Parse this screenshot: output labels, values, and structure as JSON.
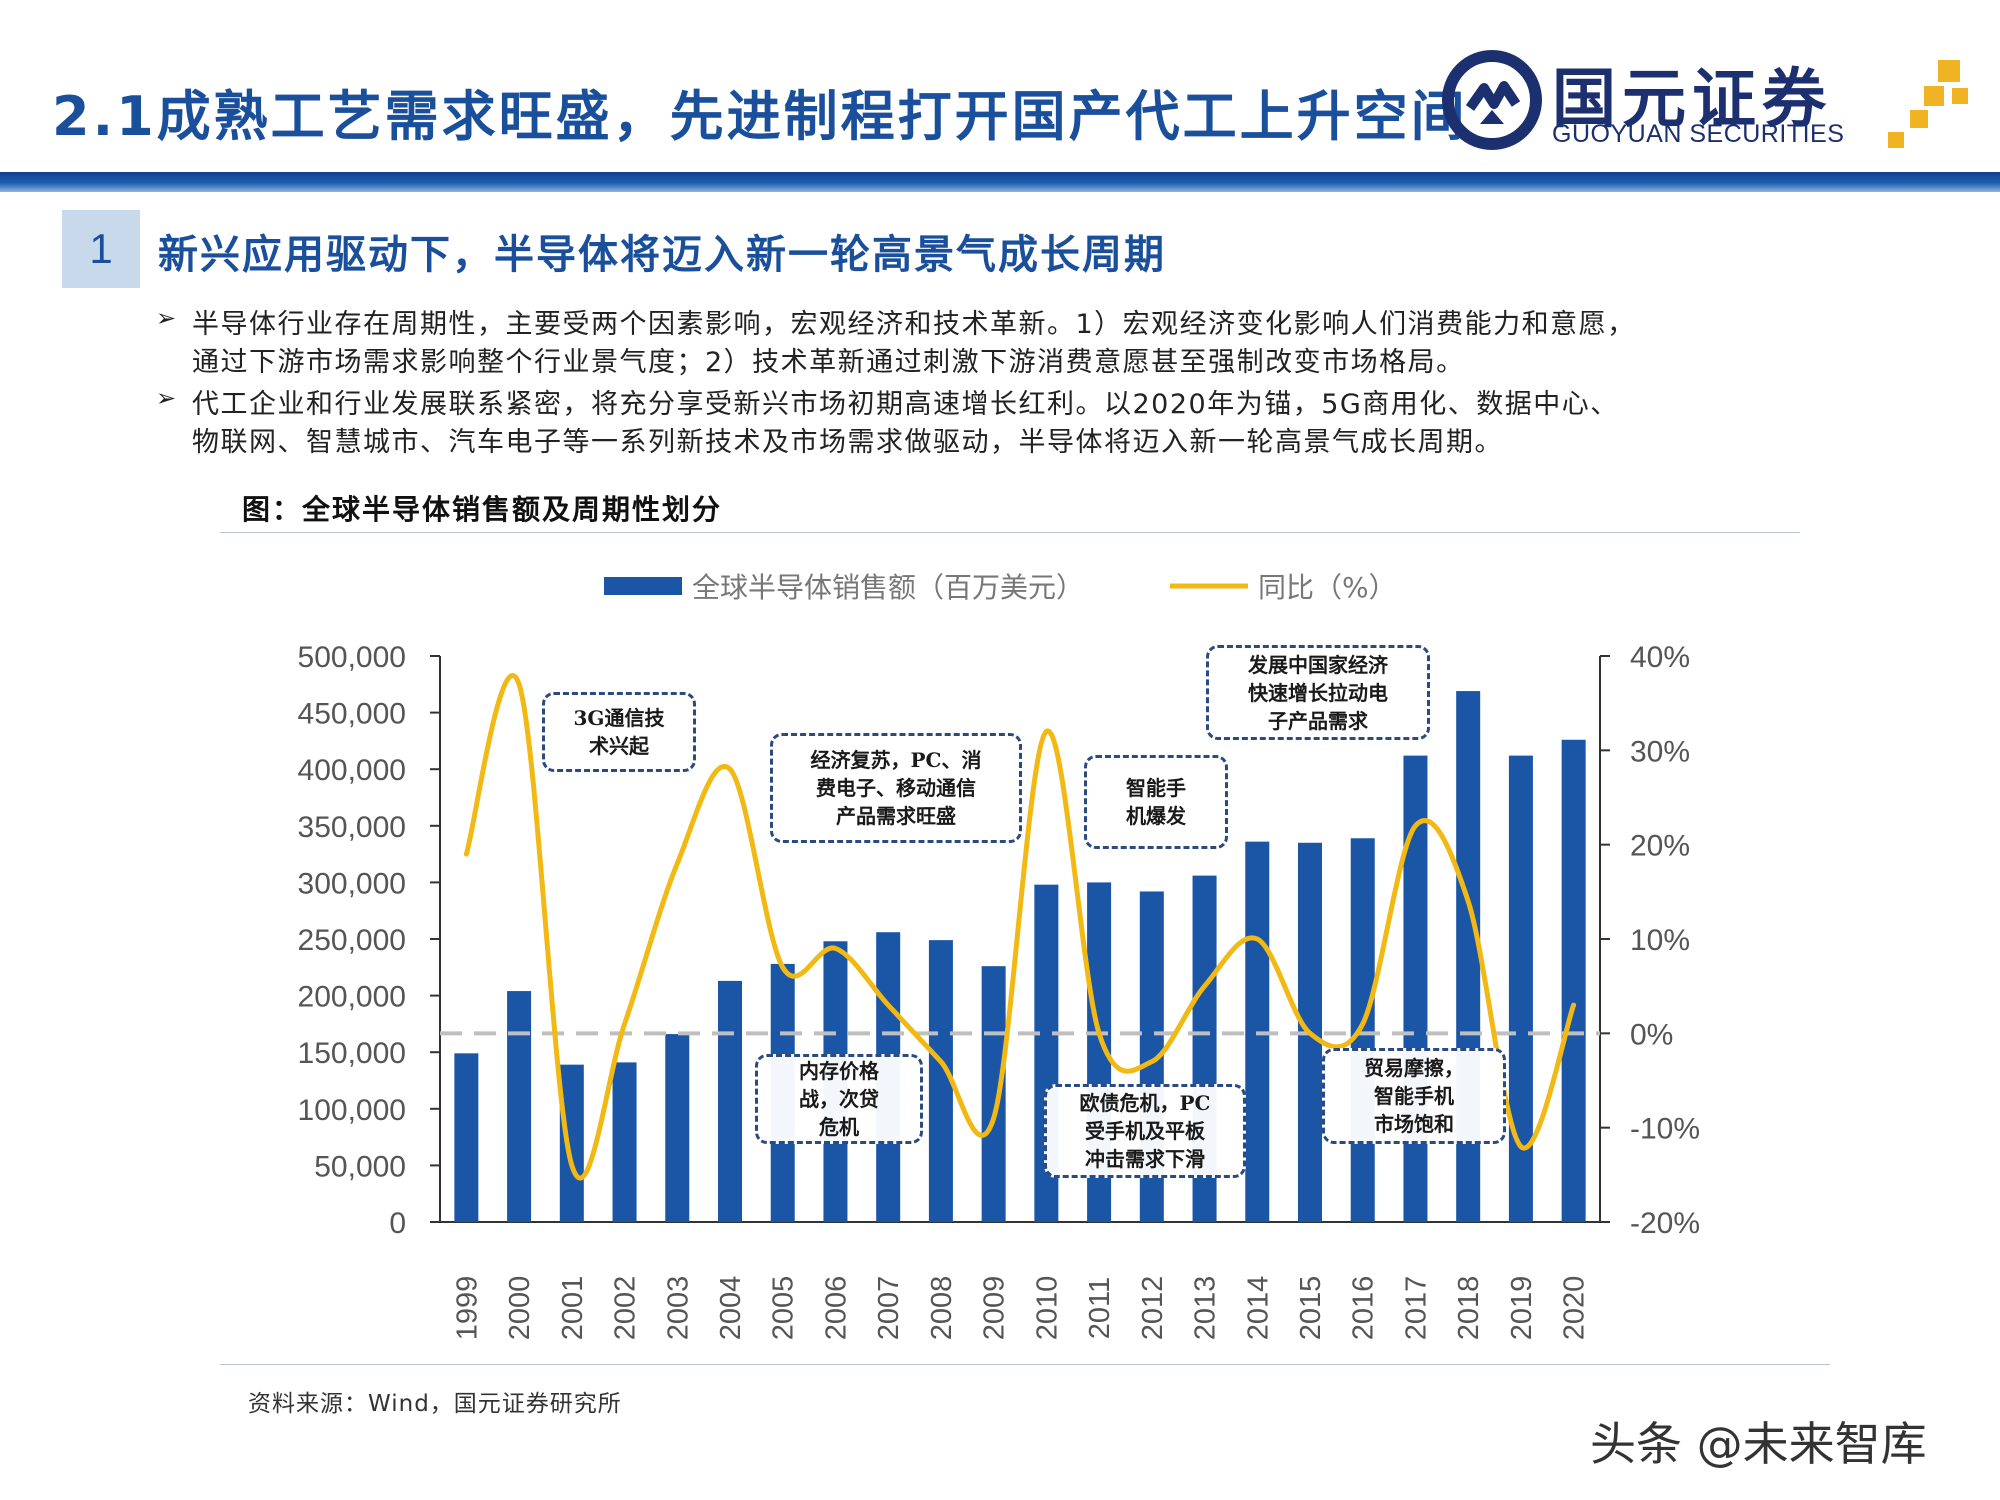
{
  "header": {
    "title": "2.1成熟工艺需求旺盛，先进制程打开国产代工上升空间",
    "logo_name": "国元证券",
    "logo_sub": "GUOYUAN SECURITIES"
  },
  "section": {
    "number": "1",
    "title": "新兴应用驱动下，半导体将迈入新一轮高景气成长周期"
  },
  "bullets": [
    {
      "mark": "➢",
      "line1": "半导体行业存在周期性，主要受两个因素影响，宏观经济和技术革新。1）宏观经济变化影响人们消费能力和意愿，",
      "line2": "通过下游市场需求影响整个行业景气度；2）技术革新通过刺激下游消费意愿甚至强制改变市场格局。"
    },
    {
      "mark": "➢",
      "line1": "代工企业和行业发展联系紧密，将充分享受新兴市场初期高速增长红利。以2020年为锚，5G商用化、数据中心、",
      "line2": "物联网、智慧城市、汽车电子等一系列新技术及市场需求做驱动，半导体将迈入新一轮高景气成长周期。"
    }
  ],
  "figure_caption": "图：全球半导体销售额及周期性划分",
  "source": "资料来源：Wind，国元证券研究所",
  "watermark": "头条 @未来智库",
  "colors": {
    "brand_blue": "#1a4f9c",
    "bar": "#1a55a6",
    "line": "#f2b914",
    "zero_line": "#bfbfbf",
    "logo_navy": "#1c2f6e",
    "logo_gold": "#f0b323"
  },
  "annotations": [
    {
      "id": "3g",
      "text_lines": [
        "3G通信技",
        "术兴起"
      ]
    },
    {
      "id": "recovery",
      "text_lines": [
        "经济复苏，PC、消",
        "费电子、移动通信",
        "产品需求旺盛"
      ]
    },
    {
      "id": "smartphone",
      "text_lines": [
        "智能手",
        "机爆发"
      ]
    },
    {
      "id": "developing",
      "text_lines": [
        "发展中国家经济",
        "快速增长拉动电",
        "子产品需求"
      ]
    },
    {
      "id": "memory",
      "text_lines": [
        "内存价格",
        "战，次贷",
        "危机"
      ]
    },
    {
      "id": "debt",
      "text_lines": [
        "欧债危机，PC",
        "受手机及平板",
        "冲击需求下滑"
      ]
    },
    {
      "id": "trade",
      "text_lines": [
        "贸易摩擦，",
        "智能手机",
        "市场饱和"
      ]
    }
  ],
  "chart_data": {
    "type": "bar+line",
    "categories": [
      "1999",
      "2000",
      "2001",
      "2002",
      "2003",
      "2004",
      "2005",
      "2006",
      "2007",
      "2008",
      "2009",
      "2010",
      "2011",
      "2012",
      "2013",
      "2014",
      "2015",
      "2016",
      "2017",
      "2018",
      "2019",
      "2020"
    ],
    "series": [
      {
        "name": "全球半导体销售额（百万美元）",
        "type": "bar",
        "axis": "left",
        "values": [
          149000,
          204000,
          139000,
          141000,
          166000,
          213000,
          228000,
          248000,
          256000,
          249000,
          226000,
          298000,
          300000,
          292000,
          306000,
          336000,
          335000,
          339000,
          412000,
          469000,
          412000,
          426000
        ]
      },
      {
        "name": "同比（%）",
        "type": "line",
        "axis": "right",
        "values": [
          19,
          37,
          -14,
          1,
          18,
          28,
          7,
          9,
          3,
          -3,
          -9,
          32,
          0,
          -3,
          5,
          10,
          0,
          1,
          22,
          14,
          -12,
          3
        ]
      }
    ],
    "y_left": {
      "min": 0,
      "max": 500000,
      "ticks": [
        "0",
        "50,000",
        "100,000",
        "150,000",
        "200,000",
        "250,000",
        "300,000",
        "350,000",
        "400,000",
        "450,000",
        "500,000"
      ]
    },
    "y_right": {
      "min": -20,
      "max": 40,
      "ticks": [
        "-20%",
        "-10%",
        "0%",
        "10%",
        "20%",
        "30%",
        "40%"
      ]
    },
    "zero_reference_line": true,
    "grid": false,
    "legend_position": "top"
  }
}
